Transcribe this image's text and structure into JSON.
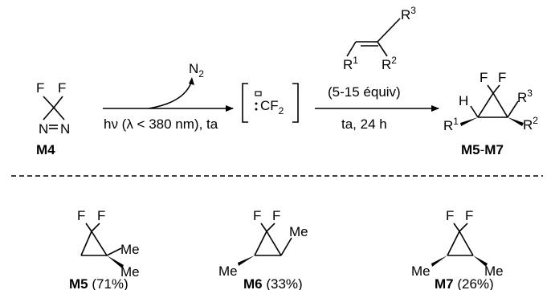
{
  "reaction": {
    "reagent": {
      "label": "M4",
      "atoms": {
        "F": "F",
        "N": "N"
      }
    },
    "step1": {
      "above": "N",
      "above_sub": "2",
      "below": "hν (λ < 380 nm), ta"
    },
    "intermediate": {
      "text": "CF",
      "sub": "2"
    },
    "step2": {
      "alkene": {
        "R1": "R",
        "R1_sup": "1",
        "R2": "R",
        "R2_sup": "2",
        "R3": "R",
        "R3_sup": "3"
      },
      "equiv": "(5-15 équiv)",
      "below": "ta, 24 h"
    },
    "product": {
      "label_a": "M5",
      "label_sep": "-",
      "label_b": "M7",
      "F": "F",
      "H": "H",
      "R1": "R",
      "R1_sup": "1",
      "R2": "R",
      "R2_sup": "2",
      "R3": "R",
      "R3_sup": "3"
    }
  },
  "examples": [
    {
      "label": "M5",
      "yield": " (71%)",
      "subs": [
        "Me",
        "Me"
      ],
      "F": "F"
    },
    {
      "label": "M6",
      "yield": " (33%)",
      "subs": [
        "Me",
        "Me"
      ],
      "F": "F"
    },
    {
      "label": "M7",
      "yield": " (26%)",
      "subs": [
        "Me",
        "Me"
      ],
      "F": "F"
    }
  ]
}
